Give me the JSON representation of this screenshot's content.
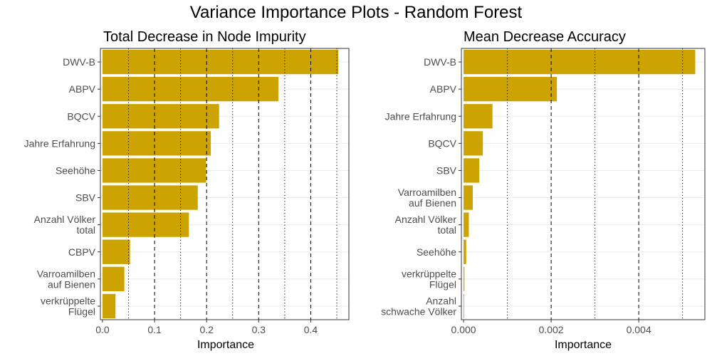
{
  "figure": {
    "title": "Variance Importance Plots - Random Forest",
    "bar_color": "#CCA300",
    "panel_border_color": "#333333",
    "gridline_color": "#EBEBEB",
    "reference_line_color": "#000000"
  },
  "chart_data": [
    {
      "type": "bar",
      "orientation": "horizontal",
      "title": "Total Decrease in Node Impurity",
      "xlabel": "Importance",
      "ylabel": "",
      "xlim": [
        -0.004,
        0.4732
      ],
      "xticks": [
        0.0,
        0.1,
        0.2,
        0.3,
        0.4
      ],
      "xtick_labels": [
        "0.0",
        "0.1",
        "0.2",
        "0.3",
        "0.4"
      ],
      "dashed_lines": [
        0.1,
        0.2,
        0.3,
        0.4
      ],
      "dotted_lines": [
        0.05,
        0.15,
        0.25,
        0.35,
        0.45
      ],
      "categories": [
        [
          "DWV-B"
        ],
        [
          "ABPV"
        ],
        [
          "BQCV"
        ],
        [
          "Jahre Erfahrung"
        ],
        [
          "Seehöhe"
        ],
        [
          "SBV"
        ],
        [
          "Anzahl Völker",
          "total"
        ],
        [
          "CBPV"
        ],
        [
          "Varroamilben",
          "auf Bienen"
        ],
        [
          "verkrüppelte",
          "Flügel"
        ]
      ],
      "values": [
        0.453,
        0.338,
        0.224,
        0.208,
        0.199,
        0.183,
        0.166,
        0.053,
        0.042,
        0.025
      ]
    },
    {
      "type": "bar",
      "orientation": "horizontal",
      "title": "Mean Decrease Accuracy",
      "xlabel": "Importance",
      "ylabel": "",
      "xlim": [
        -5e-05,
        0.00551
      ],
      "xticks": [
        0.0,
        0.002,
        0.004
      ],
      "xtick_labels": [
        "0.000",
        "0.002",
        "0.004"
      ],
      "dashed_lines": [
        0.002,
        0.004
      ],
      "dotted_lines": [
        0.001,
        0.003,
        0.005
      ],
      "categories": [
        [
          "DWV-B"
        ],
        [
          "ABPV"
        ],
        [
          "Jahre Erfahrung"
        ],
        [
          "BQCV"
        ],
        [
          "SBV"
        ],
        [
          "Varroamilben",
          "auf Bienen"
        ],
        [
          "Anzahl Völker",
          "total"
        ],
        [
          "Seehöhe"
        ],
        [
          "verkrüppelte",
          "Flügel"
        ],
        [
          "Anzahl",
          "schwache Völker"
        ]
      ],
      "values": [
        0.00529,
        0.00213,
        0.00066,
        0.00044,
        0.00036,
        0.00021,
        0.00012,
        6e-05,
        2e-05,
        1e-05
      ]
    }
  ]
}
